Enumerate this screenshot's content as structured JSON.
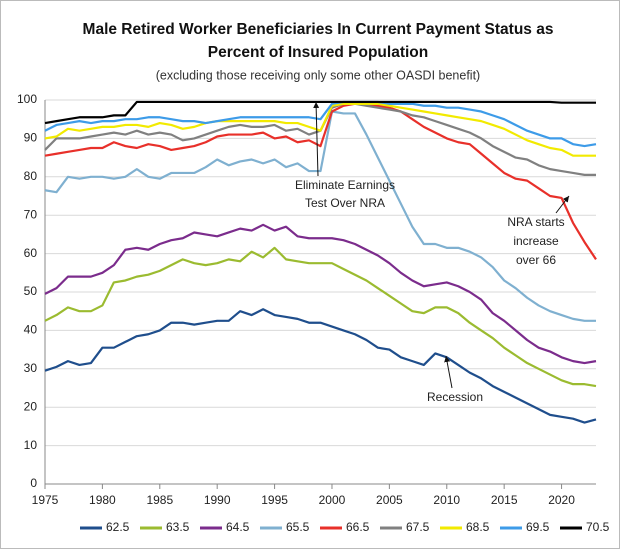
{
  "chart_data": {
    "type": "line",
    "title": [
      "Male Retired Worker Beneficiaries In Current Payment Status as",
      "Percent of Insured Population"
    ],
    "subtitle": "(excluding those receiving only some other OASDI benefit)",
    "x": [
      1975,
      1976,
      1977,
      1978,
      1979,
      1980,
      1981,
      1982,
      1983,
      1984,
      1985,
      1986,
      1987,
      1988,
      1989,
      1990,
      1991,
      1992,
      1993,
      1994,
      1995,
      1996,
      1997,
      1998,
      1999,
      2000,
      2001,
      2002,
      2003,
      2004,
      2005,
      2006,
      2007,
      2008,
      2009,
      2010,
      2011,
      2012,
      2013,
      2014,
      2015,
      2016,
      2017,
      2018,
      2019,
      2020,
      2021,
      2022,
      2023
    ],
    "xlim": [
      1975,
      2023
    ],
    "xticks": [
      1975,
      1980,
      1985,
      1990,
      1995,
      2000,
      2005,
      2010,
      2015,
      2020
    ],
    "ylim": [
      0,
      100
    ],
    "yticks": [
      0,
      10,
      20,
      30,
      40,
      50,
      60,
      70,
      80,
      90,
      100
    ],
    "grid": true,
    "legend": "bottom",
    "series": [
      {
        "name": "62.5",
        "color": "#1f4e8c",
        "values": [
          29.5,
          30.5,
          32,
          31,
          31.5,
          35.5,
          35.5,
          37,
          38.5,
          39,
          40,
          42,
          42,
          41.5,
          42,
          42.5,
          42.5,
          45,
          44,
          45.5,
          44,
          43.5,
          43,
          42,
          42,
          41,
          40,
          39,
          37.5,
          35.5,
          35,
          33,
          32,
          31,
          34,
          33,
          31,
          29,
          27.5,
          25.5,
          24,
          22.5,
          21,
          19.5,
          18,
          17.5,
          17,
          16,
          16.8
        ]
      },
      {
        "name": "63.5",
        "color": "#9bbb30",
        "values": [
          42.5,
          44,
          46,
          45,
          45,
          46.5,
          52.5,
          53,
          54,
          54.5,
          55.5,
          57,
          58.5,
          57.5,
          57,
          57.5,
          58.5,
          58,
          60.5,
          59,
          61.5,
          58.5,
          58,
          57.5,
          57.5,
          57.5,
          56,
          54.5,
          53,
          51,
          49,
          47,
          45,
          44.5,
          46,
          46,
          44.5,
          42,
          40,
          38,
          35.5,
          33.5,
          31.5,
          30,
          28.5,
          27,
          26,
          26,
          25.5
        ]
      },
      {
        "name": "64.5",
        "color": "#7b2c8c",
        "values": [
          49.5,
          51,
          54,
          54,
          54,
          55,
          57,
          61,
          61.5,
          61,
          62.5,
          63.5,
          64,
          65.5,
          65,
          64.5,
          65.5,
          66.5,
          66,
          67.5,
          66,
          67,
          64.5,
          64,
          64,
          64,
          63.5,
          62.5,
          61,
          59.5,
          57.5,
          55,
          53,
          51.5,
          52,
          52.5,
          51.5,
          50,
          48,
          44.5,
          42.5,
          40,
          37.5,
          35.5,
          34.5,
          33,
          32,
          31.5,
          32
        ]
      },
      {
        "name": "65.5",
        "color": "#7fb0d0",
        "values": [
          76.5,
          76,
          80,
          79.5,
          80,
          80,
          79.5,
          80,
          82,
          80,
          79.5,
          81,
          81,
          81,
          82.5,
          84.5,
          83,
          84,
          84.5,
          83.5,
          84.5,
          82.5,
          83.5,
          81.5,
          81.5,
          97,
          96.5,
          96.5,
          91,
          85,
          79,
          73,
          67,
          62.5,
          62.5,
          61.5,
          61.5,
          60.5,
          59,
          56.5,
          53,
          51,
          48.5,
          46.5,
          45,
          44,
          43,
          42.5,
          42.5
        ]
      },
      {
        "name": "66.5",
        "color": "#e8302a",
        "values": [
          85.5,
          86,
          86.5,
          87,
          87.5,
          87.5,
          89,
          88,
          87.5,
          88.5,
          88,
          87,
          87.5,
          88,
          89,
          90.5,
          91,
          91,
          91,
          91.5,
          90,
          90.5,
          89,
          89.5,
          88,
          97,
          98.5,
          99,
          99,
          98.5,
          98,
          97,
          95,
          93,
          91.5,
          90,
          89,
          88.5,
          86,
          83.5,
          81,
          79.5,
          79,
          77,
          75,
          74.5,
          68,
          63,
          58.5
        ]
      },
      {
        "name": "67.5",
        "color": "#808080",
        "values": [
          87,
          90,
          90,
          90,
          90.5,
          91,
          91.5,
          91,
          92,
          91,
          91.5,
          91,
          89.5,
          90,
          91,
          92,
          93,
          93.5,
          93,
          93,
          93.5,
          92,
          92.5,
          91,
          92,
          98,
          99,
          99,
          98.5,
          98,
          97.5,
          97,
          96,
          95.5,
          94.5,
          93.5,
          92.5,
          91.5,
          90,
          88,
          86.5,
          85,
          84.5,
          83,
          82,
          81.5,
          81,
          80.5,
          80.5
        ]
      },
      {
        "name": "68.5",
        "color": "#f2ea00",
        "values": [
          90,
          90.5,
          92.5,
          92,
          92.5,
          93,
          93,
          93.5,
          93.5,
          93,
          94,
          93.5,
          92.5,
          93,
          94,
          94.5,
          94.5,
          94.5,
          94.5,
          94.5,
          94.5,
          94,
          94,
          93,
          92,
          98.5,
          99,
          99,
          99,
          99,
          98.5,
          98,
          97.5,
          97,
          96.5,
          96,
          95.5,
          95,
          94.5,
          93.5,
          92.5,
          91,
          89.5,
          88.5,
          87.5,
          87,
          85.5,
          85.5,
          85.5
        ]
      },
      {
        "name": "69.5",
        "color": "#3d9be8",
        "values": [
          92,
          93.5,
          94,
          94.5,
          94,
          94.5,
          94.5,
          95,
          95,
          95.5,
          95.5,
          95,
          94.5,
          94.5,
          94,
          94.5,
          95,
          95.5,
          95.5,
          95.5,
          95.5,
          95.5,
          95.5,
          95.5,
          95,
          99,
          99.5,
          99.5,
          99.5,
          99.5,
          99,
          99,
          99,
          98.5,
          98.5,
          98,
          98,
          97.5,
          97,
          96,
          95,
          93.5,
          92,
          91,
          90,
          90,
          88.5,
          88,
          88.5
        ]
      },
      {
        "name": "70.5",
        "color": "#000000",
        "values": [
          94,
          94.5,
          95,
          95.5,
          95.5,
          95.5,
          96,
          96,
          99.5,
          99.5,
          99.5,
          99.5,
          99.5,
          99.5,
          99.5,
          99.5,
          99.5,
          99.5,
          99.5,
          99.5,
          99.5,
          99.5,
          99.5,
          99.5,
          99.5,
          99.5,
          99.5,
          99.5,
          99.5,
          99.5,
          99.5,
          99.5,
          99.5,
          99.5,
          99.5,
          99.5,
          99.5,
          99.5,
          99.5,
          99.5,
          99.5,
          99.5,
          99.5,
          99.5,
          99.5,
          99.3,
          99.3,
          99.3,
          99.3
        ]
      }
    ],
    "annotations": [
      {
        "lines": [
          "Eliminate Earnings",
          "Test Over NRA"
        ]
      },
      {
        "lines": [
          "NRA starts",
          "increase",
          "over 66"
        ]
      },
      {
        "lines": [
          "Recession"
        ]
      }
    ]
  }
}
